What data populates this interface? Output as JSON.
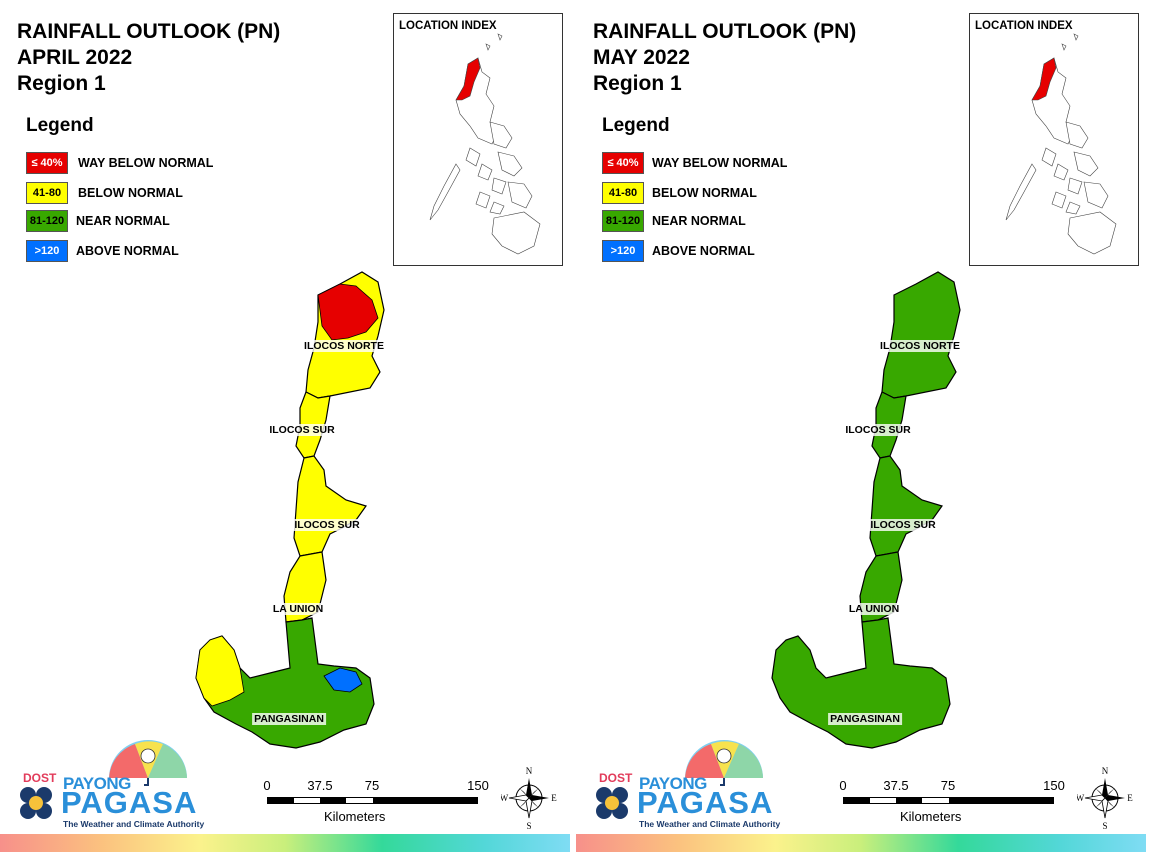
{
  "colors": {
    "way_below": "#e60000",
    "below": "#ffff00",
    "near": "#38a800",
    "above": "#0070ff",
    "index_region": "#e60000"
  },
  "legend": {
    "title": "Legend",
    "items": [
      {
        "range": "≤ 40%",
        "label": "WAY BELOW NORMAL",
        "category": "way_below"
      },
      {
        "range": "41-80",
        "label": "BELOW NORMAL",
        "category": "below"
      },
      {
        "range": "81-120",
        "label": "NEAR NORMAL",
        "category": "near"
      },
      {
        "range": ">120",
        "label": "ABOVE NORMAL",
        "category": "above"
      }
    ]
  },
  "panels": [
    {
      "title": "RAINFALL OUTLOOK (PN)",
      "month": "APRIL 2022",
      "region": "Region 1",
      "index_title": "LOCATION INDEX",
      "provinces": [
        {
          "name": "ILOCOS NORTE",
          "category": "below",
          "pocket": "way_below"
        },
        {
          "name": "ILOCOS SUR",
          "category": "below"
        },
        {
          "name": "ILOCOS SUR",
          "category": "below"
        },
        {
          "name": "LA UNION",
          "category": "below"
        },
        {
          "name": "PANGASINAN",
          "category": "near",
          "pocket": "above",
          "west_pocket": "below"
        }
      ]
    },
    {
      "title": "RAINFALL OUTLOOK (PN)",
      "month": "MAY 2022",
      "region": "Region 1",
      "index_title": "LOCATION INDEX",
      "provinces": [
        {
          "name": "ILOCOS NORTE",
          "category": "near"
        },
        {
          "name": "ILOCOS SUR",
          "category": "near"
        },
        {
          "name": "ILOCOS SUR",
          "category": "near"
        },
        {
          "name": "LA UNION",
          "category": "near"
        },
        {
          "name": "PANGASINAN",
          "category": "near"
        }
      ]
    }
  ],
  "scalebar": {
    "ticks": [
      "0",
      "37.5",
      "75",
      "150"
    ],
    "unit": "Kilometers"
  },
  "compass": {
    "n": "N",
    "s": "S",
    "e": "E",
    "w": "W"
  },
  "logo": {
    "dost": "DOST",
    "payong": "PAYONG",
    "pagasa": "PAGASA",
    "tagline": "The Weather and Climate Authority"
  }
}
